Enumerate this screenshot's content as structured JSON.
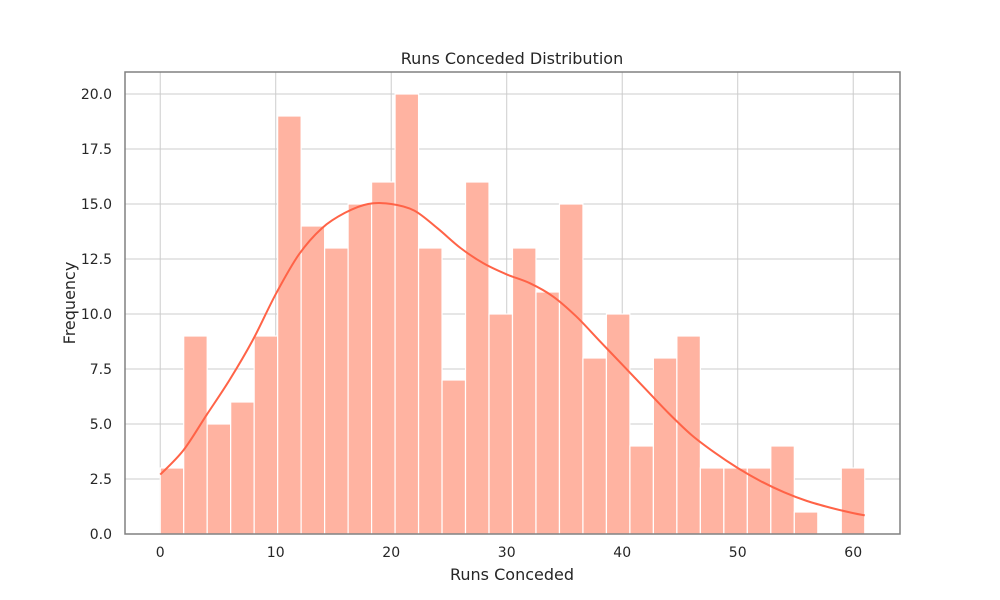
{
  "chart_data": {
    "type": "bar",
    "title": "Runs Conceded Distribution",
    "xlabel": "Runs Conceded",
    "ylabel": "Frequency",
    "xlim": [
      -3.05,
      64.05
    ],
    "ylim": [
      0,
      21
    ],
    "x_ticks": [
      0,
      10,
      20,
      30,
      40,
      50,
      60
    ],
    "x_tick_labels": [
      "0",
      "10",
      "20",
      "30",
      "40",
      "50",
      "60"
    ],
    "y_ticks": [
      0,
      2.5,
      5,
      7.5,
      10,
      12.5,
      15,
      17.5,
      20
    ],
    "y_tick_labels": [
      "0.0",
      "2.5",
      "5.0",
      "7.5",
      "10.0",
      "12.5",
      "15.0",
      "17.5",
      "20.0"
    ],
    "grid": true,
    "bins": {
      "start": 0,
      "width": 2.0333,
      "counts": [
        3,
        9,
        5,
        6,
        9,
        19,
        14,
        13,
        15,
        16,
        20,
        13,
        7,
        16,
        10,
        13,
        11,
        15,
        8,
        10,
        4,
        8,
        9,
        3,
        3,
        3,
        4,
        1,
        0,
        3
      ]
    },
    "kde": {
      "x": [
        0,
        2,
        4,
        6,
        8,
        10,
        12,
        14,
        16,
        18,
        20,
        22,
        24,
        26,
        28,
        30,
        32,
        34,
        36,
        38,
        40,
        42,
        44,
        46,
        48,
        50,
        52,
        54,
        56,
        58,
        60,
        61
      ],
      "y": [
        2.7,
        3.8,
        5.4,
        7.0,
        8.8,
        10.9,
        12.7,
        13.9,
        14.6,
        15.0,
        15.0,
        14.7,
        13.9,
        13.0,
        12.3,
        11.8,
        11.4,
        10.8,
        9.9,
        8.8,
        7.7,
        6.6,
        5.5,
        4.5,
        3.7,
        3.0,
        2.4,
        1.9,
        1.5,
        1.2,
        0.95,
        0.85
      ]
    },
    "colors": {
      "bar_fill": "#ffb3a1",
      "bar_edge": "#ffffff",
      "kde_line": "#ff6347",
      "grid": "#cccccc",
      "frame": "#808080"
    }
  }
}
